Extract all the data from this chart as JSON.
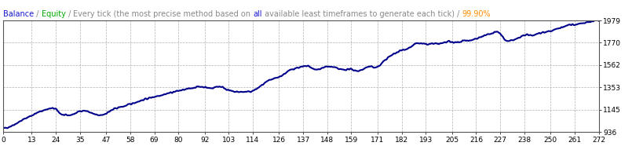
{
  "title_parts": [
    {
      "text": "Balance",
      "color": "#1515CC"
    },
    {
      "text": " / ",
      "color": "#888888"
    },
    {
      "text": "Equity",
      "color": "#00AA00"
    },
    {
      "text": " / ",
      "color": "#888888"
    },
    {
      "text": "Every tick (the most precise method based on ",
      "color": "#888888"
    },
    {
      "text": "all",
      "color": "#1515CC"
    },
    {
      "text": " available least timeframes to generate each tick)",
      "color": "#888888"
    },
    {
      "text": " / ",
      "color": "#888888"
    },
    {
      "text": "99.90%",
      "color": "#FF8C00"
    }
  ],
  "x_ticks": [
    0,
    13,
    24,
    35,
    47,
    58,
    69,
    80,
    92,
    103,
    114,
    126,
    137,
    148,
    159,
    171,
    182,
    193,
    205,
    216,
    227,
    238,
    250,
    261,
    272
  ],
  "y_ticks": [
    936,
    1145,
    1353,
    1562,
    1770,
    1979
  ],
  "y_min": 936,
  "y_max": 1979,
  "x_min": 0,
  "x_max": 272,
  "line_color": "#00008B",
  "line_width": 1.5,
  "bg_color": "#FFFFFF",
  "plot_bg_color": "#FFFFFF",
  "grid_color": "#B0B0B0",
  "title_fontsize": 7.0
}
